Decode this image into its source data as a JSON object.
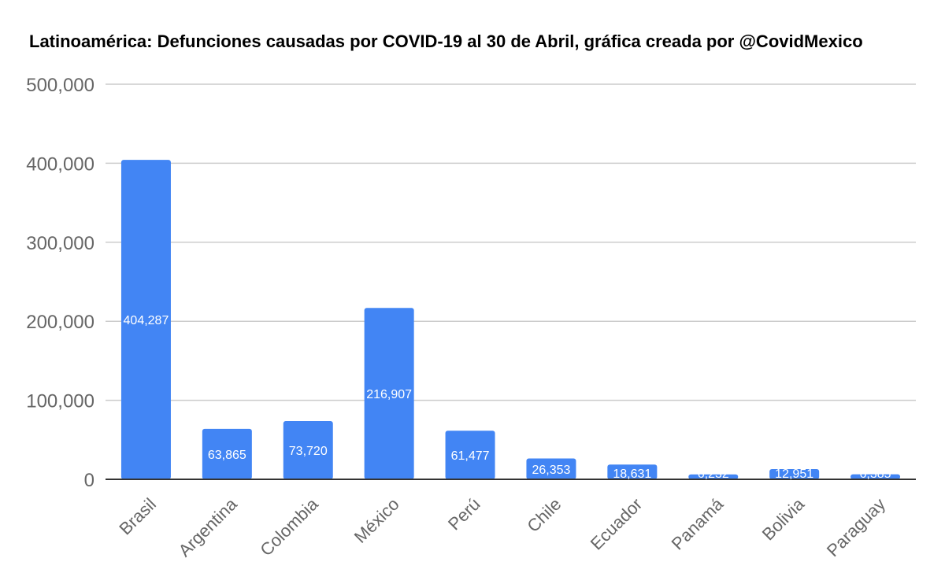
{
  "chart_data": {
    "type": "bar",
    "title": "Latinoamérica: Defunciones causadas por COVID-19 al 30 de Abril, gráfica creada por @CovidMexico",
    "categories": [
      "Brasil",
      "Argentina",
      "Colombia",
      "México",
      "Perú",
      "Chile",
      "Ecuador",
      "Panamá",
      "Bolivia",
      "Paraguay"
    ],
    "values": [
      404287,
      63865,
      73720,
      216907,
      61477,
      26353,
      18631,
      6232,
      12951,
      6385
    ],
    "data_labels": [
      "404,287",
      "63,865",
      "73,720",
      "216,907",
      "61,477",
      "26,353",
      "18,631",
      "6,232",
      "12,951",
      "6,385"
    ],
    "yticks": [
      0,
      100000,
      200000,
      300000,
      400000,
      500000
    ],
    "ytick_labels": [
      "0",
      "100,000",
      "200,000",
      "300,000",
      "400,000",
      "500,000"
    ],
    "ylim": [
      0,
      500000
    ],
    "xlabel": "",
    "ylabel": "",
    "grid": true,
    "legend": "none",
    "bar_color": "#4285f4",
    "grid_color": "#cccccc",
    "axis_color": "#333333",
    "tick_color": "#666666"
  }
}
